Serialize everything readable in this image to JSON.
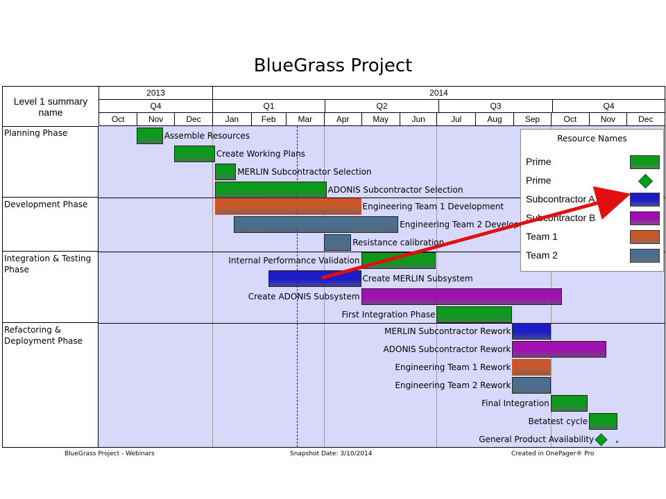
{
  "title": "BlueGrass Project",
  "header": {
    "left_label": "Level 1 summary name",
    "years": [
      {
        "label": "2013"
      },
      {
        "label": "2014"
      }
    ],
    "quarters": [
      {
        "label": "Q4"
      },
      {
        "label": "Q1"
      },
      {
        "label": "Q2"
      },
      {
        "label": "Q3"
      },
      {
        "label": "Q4"
      }
    ],
    "months": [
      "Oct",
      "Nov",
      "Dec",
      "Jan",
      "Feb",
      "Mar",
      "Apr",
      "May",
      "Jun",
      "Jul",
      "Aug",
      "Sep",
      "Oct",
      "Nov",
      "Dec"
    ]
  },
  "phases": [
    {
      "label": "Planning Phase"
    },
    {
      "label": "Development Phase"
    },
    {
      "label": "Integration & Testing Phase"
    },
    {
      "label": "Refactoring & Deployment Phase"
    }
  ],
  "colors": {
    "plot_bg": "#d8d8fb",
    "prime": "#0b9a1a",
    "subcontractor_a": "#1c1cc8",
    "subcontractor_b": "#a010b0",
    "team_1": "#c8582a",
    "team_2": "#4a6e8e",
    "today_line": "#1a1aa8",
    "arrow": "#e01010"
  },
  "tasks": [
    {
      "name": "Assemble Resources",
      "start": "2013-11-01",
      "end": "2013-11-22",
      "resource": "prime",
      "label_side": "right"
    },
    {
      "name": "Create Working Plans",
      "start": "2013-12-01",
      "end": "2014-01-03",
      "resource": "prime",
      "label_side": "right"
    },
    {
      "name": "MERLIN Subcontractor Selection",
      "start": "2014-01-03",
      "end": "2014-01-20",
      "resource": "prime",
      "label_side": "right"
    },
    {
      "name": "ADONIS Subcontractor Selection",
      "start": "2014-01-03",
      "end": "2014-04-03",
      "resource": "prime",
      "label_side": "right"
    },
    {
      "name": "Engineering Team 1 Development",
      "start": "2014-01-03",
      "end": "2014-05-01",
      "resource": "team_1",
      "label_side": "right"
    },
    {
      "name": "Engineering Team 2 Development",
      "start": "2014-01-18",
      "end": "2014-05-31",
      "resource": "team_2",
      "label_side": "right"
    },
    {
      "name": "Resistance calibration",
      "start": "2014-04-01",
      "end": "2014-04-23",
      "resource": "team_2",
      "label_side": "right"
    },
    {
      "name": "Internal Performance Validation",
      "start": "2014-05-01",
      "end": "2014-06-30",
      "resource": "prime",
      "label_side": "left"
    },
    {
      "name": "Create MERLIN Subsystem",
      "start": "2014-02-15",
      "end": "2014-05-01",
      "resource": "subcontractor_a",
      "label_side": "right"
    },
    {
      "name": "Create ADONIS Subsystem",
      "start": "2014-05-01",
      "end": "2014-10-10",
      "resource": "subcontractor_b",
      "label_side": "left"
    },
    {
      "name": "First Integration Phase",
      "start": "2014-07-01",
      "end": "2014-08-31",
      "resource": "prime",
      "label_side": "left"
    },
    {
      "name": "MERLIN Subcontractor Rework",
      "start": "2014-08-31",
      "end": "2014-10-01",
      "resource": "subcontractor_a",
      "label_side": "left"
    },
    {
      "name": "ADONIS Subcontractor Rework",
      "start": "2014-08-31",
      "end": "2014-11-15",
      "resource": "subcontractor_b",
      "label_side": "left"
    },
    {
      "name": "Engineering Team 1 Rework",
      "start": "2014-08-31",
      "end": "2014-10-01",
      "resource": "team_1",
      "label_side": "left"
    },
    {
      "name": "Engineering Team 2 Rework",
      "start": "2014-08-31",
      "end": "2014-10-01",
      "resource": "team_2",
      "label_side": "left"
    },
    {
      "name": "Final Integration",
      "start": "2014-10-01",
      "end": "2014-10-31",
      "resource": "prime",
      "label_side": "left"
    },
    {
      "name": "Betatest cycle",
      "start": "2014-11-01",
      "end": "2014-11-24",
      "resource": "prime",
      "label_side": "left"
    },
    {
      "name": "General Product Availability",
      "date": "2014-11-10",
      "resource": "prime",
      "milestone": true,
      "label_side": "left"
    }
  ],
  "legend": {
    "title": "Resource Names",
    "items": [
      {
        "label": "Prime",
        "swatch": "bar",
        "color": "#0b9a1a"
      },
      {
        "label": "Prime",
        "swatch": "diamond",
        "color": "#0b9a1a"
      },
      {
        "label": "Subcontractor A",
        "swatch": "bar",
        "color": "#1c1cc8"
      },
      {
        "label": "Subcontractor B",
        "swatch": "bar",
        "color": "#a010b0"
      },
      {
        "label": "Team 1",
        "swatch": "bar",
        "color": "#c8582a"
      },
      {
        "label": "Team 2",
        "swatch": "bar",
        "color": "#4a6e8e"
      }
    ]
  },
  "footer": {
    "left": "BlueGrass Project - Webinars",
    "center": "Snapshot Date: 3/10/2014",
    "right": "Created in OnePager® Pro"
  }
}
